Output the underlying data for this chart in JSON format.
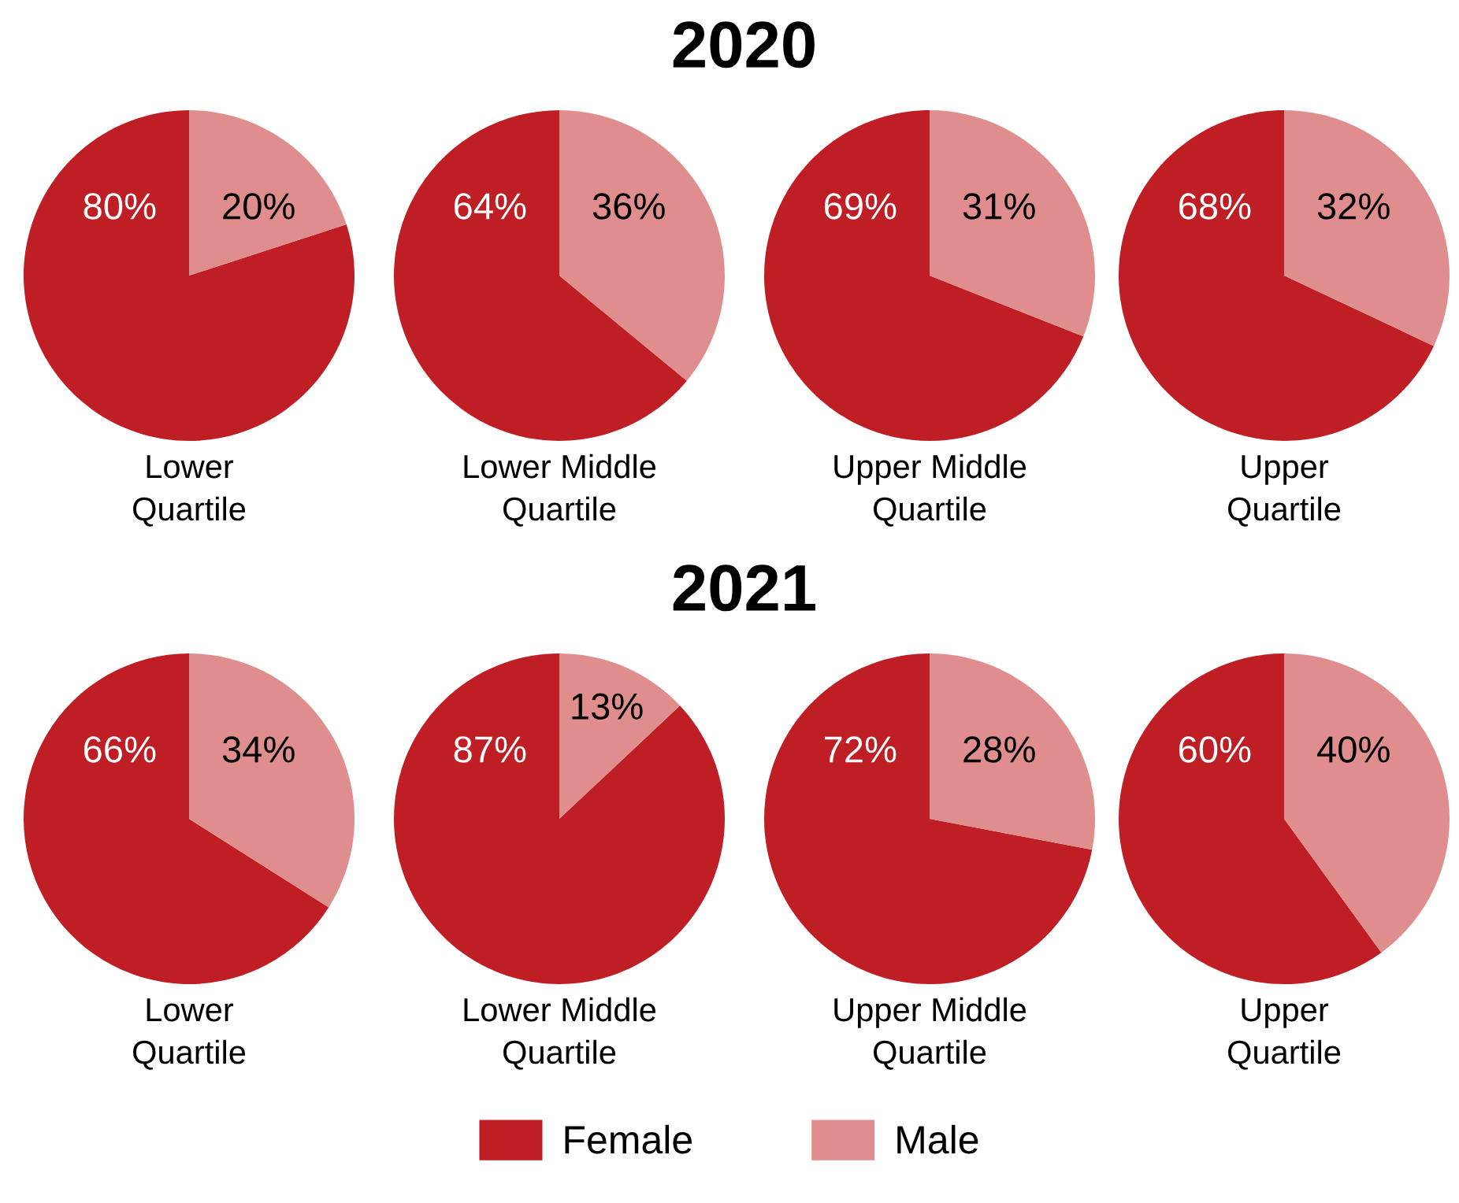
{
  "chart_data": [
    {
      "type": "pie",
      "title": "2020",
      "xlabel": "Lower\nQuartile",
      "categories": [
        null,
        null
      ],
      "values": [
        80,
        20
      ],
      "value_labels": [
        "80%",
        "20%"
      ],
      "colors": [
        "#be1e24",
        "#e08d8d"
      ]
    },
    {
      "type": "pie",
      "xlabel": "Lower Middle\nQuartile",
      "categories": [
        null,
        null
      ],
      "values": [
        64,
        36
      ],
      "value_labels": [
        "64%",
        "36%"
      ],
      "colors": [
        "#be1e24",
        "#e08d8d"
      ]
    },
    {
      "type": "pie",
      "xlabel": "Upper Middle\nQuartile",
      "categories": [
        null,
        null
      ],
      "values": [
        69,
        31
      ],
      "value_labels": [
        "69%",
        "31%"
      ],
      "colors": [
        "#be1e24",
        "#e08d8d"
      ]
    },
    {
      "type": "pie",
      "xlabel": "Upper\nQuartile",
      "categories": [
        null,
        null
      ],
      "values": [
        68,
        32
      ],
      "value_labels": [
        "68%",
        "32%"
      ],
      "colors": [
        "#be1e24",
        "#e08d8d"
      ]
    },
    {
      "type": "pie",
      "title": "2021",
      "xlabel": "Lower\nQuartile",
      "categories": [
        null,
        null
      ],
      "values": [
        66,
        34
      ],
      "value_labels": [
        "66%",
        "34%"
      ],
      "colors": [
        "#be1e24",
        "#e08d8d"
      ]
    },
    {
      "type": "pie",
      "xlabel": "Lower Middle\nQuartile",
      "categories": [
        null,
        null
      ],
      "values": [
        87,
        13
      ],
      "value_labels": [
        "87%",
        "13%"
      ],
      "colors": [
        "#be1e24",
        "#e08d8d"
      ]
    },
    {
      "type": "pie",
      "xlabel": "Upper Middle\nQuartile",
      "categories": [
        null,
        null
      ],
      "values": [
        72,
        28
      ],
      "value_labels": [
        "72%",
        "28%"
      ],
      "colors": [
        "#be1e24",
        "#e08d8d"
      ]
    },
    {
      "type": "pie",
      "xlabel": "Upper\nQuartile",
      "categories": [
        "Female",
        "Male"
      ],
      "values": [
        60,
        40
      ],
      "value_labels": [
        "60%",
        "40%"
      ],
      "colors": [
        "#be1e24",
        "#e08d8d"
      ],
      "legend": "bottom"
    }
  ]
}
